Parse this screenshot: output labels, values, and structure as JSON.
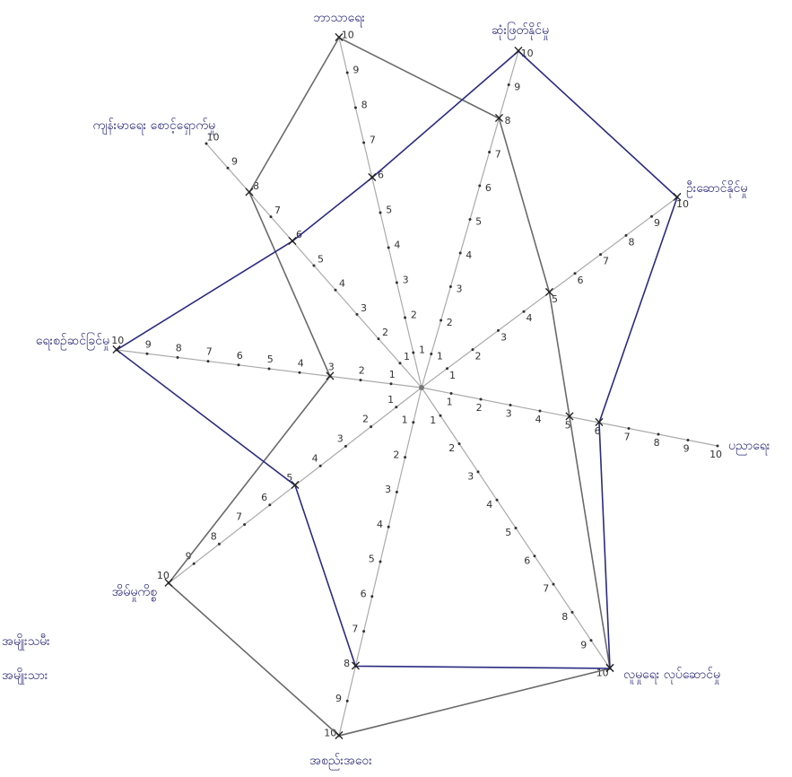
{
  "chart_data": {
    "type": "radar",
    "categories": [
      "ဘာသာရေး",
      "ဆုံးဖြတ်နိုင်မှု",
      "ဦးဆောင်နိုင်မှု",
      "ပညာရေး",
      "လူမှုရေး လုပ်ဆောင်မှု",
      "အစည်းအဝေး",
      "အိမ်မှုကိစ္စ",
      "ရေးစဉ်ဆင်ခြင်မှု",
      "ကျန်းမာရေး စောင့်ရှောက်မှု"
    ],
    "series": [
      {
        "name": "အမျိုးသမီး",
        "color": "#6a6a6a",
        "values": [
          10,
          8,
          5,
          5,
          10,
          10,
          10,
          3,
          8
        ]
      },
      {
        "name": "အမျိုးသား",
        "color": "#2b2b82",
        "values": [
          6,
          10,
          10,
          6,
          10,
          8,
          5,
          10,
          6
        ]
      }
    ],
    "rlim": [
      0,
      10
    ],
    "rticks": [
      1,
      2,
      3,
      4,
      5,
      6,
      7,
      8,
      9,
      10
    ]
  }
}
